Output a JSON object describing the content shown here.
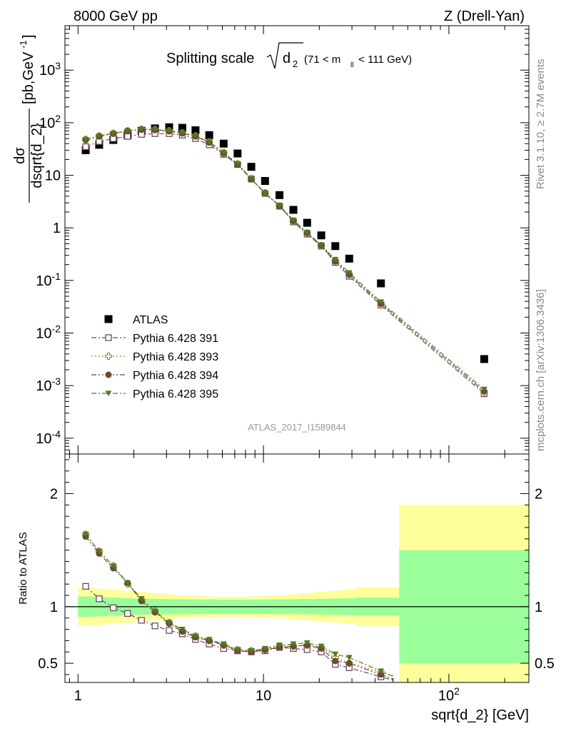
{
  "header": {
    "left": "8000 GeV pp",
    "right": "Z (Drell-Yan)"
  },
  "side": {
    "rivet": "Rivet 3.1.10, ≥ 2.7M events",
    "mcplots": "mcplots.cern.ch [arXiv:1306.3436]"
  },
  "chart_data": [
    {
      "type": "scatter",
      "panel": "main",
      "title_main": "Splitting scale",
      "title_sqrt_base": "d",
      "title_sqrt_sub": "2",
      "title_cut": "(71 < m",
      "title_cut_sub": "ll",
      "title_cut_tail": " < 111 GeV)",
      "ylabel_num": "dσ",
      "ylabel_den": "dsqrt{d_2}",
      "ylabel_unit": "[pb,GeV",
      "ylabel_unit_sup": "-1",
      "ylabel_unit_tail": "]",
      "xscale": "log",
      "yscale": "log",
      "xlim": [
        0.85,
        270
      ],
      "ylim": [
        5e-05,
        7000
      ],
      "yticks": [
        "10^-4",
        "10^-3",
        "10^-2",
        "10^-1",
        "1",
        "10",
        "10^2",
        "10^3"
      ],
      "watermark": "ATLAS_2017_I1589844",
      "legend_position": "lower-left",
      "x": [
        1.1,
        1.3,
        1.55,
        1.85,
        2.2,
        2.6,
        3.1,
        3.65,
        4.3,
        5.1,
        6.1,
        7.25,
        8.6,
        10.2,
        12.2,
        14.5,
        17.2,
        20.5,
        24.4,
        29.0,
        43.0,
        155.0
      ],
      "series": [
        {
          "name": "ATLAS",
          "marker": "filled-square",
          "color": "#000000",
          "values": [
            30,
            38,
            47,
            58,
            70,
            78,
            82,
            80,
            72,
            58,
            40,
            26,
            14.5,
            7.8,
            4.2,
            2.2,
            1.25,
            0.72,
            0.45,
            0.26,
            0.088,
            0.0032
          ]
        },
        {
          "name": "Pythia 6.428 391",
          "marker": "open-square",
          "color": "#6b4a5e",
          "dash": "7,3,2,3",
          "values": [
            35,
            44,
            50,
            55,
            60,
            62,
            62,
            58,
            50,
            38,
            25,
            16,
            8.5,
            4.5,
            2.6,
            1.3,
            0.76,
            0.45,
            0.22,
            0.12,
            0.034,
            0.0007
          ]
        },
        {
          "name": "Pythia 6.428 393",
          "marker": "open-cross",
          "color": "#9a8a3e",
          "dash": "2,3",
          "values": [
            48,
            56,
            63,
            70,
            75,
            74,
            70,
            64,
            56,
            43,
            27,
            16.5,
            8.6,
            4.6,
            2.6,
            1.35,
            0.8,
            0.46,
            0.24,
            0.13,
            0.037,
            0.00075
          ]
        },
        {
          "name": "Pythia 6.428 394",
          "marker": "filled-circle",
          "color": "#6b4a32",
          "dash": "7,3,2,3,2,3",
          "values": [
            47,
            55,
            62,
            70,
            74,
            73,
            69,
            63,
            55,
            42,
            26,
            16,
            8.4,
            4.6,
            2.6,
            1.35,
            0.8,
            0.46,
            0.23,
            0.13,
            0.036,
            0.00078
          ]
        },
        {
          "name": "Pythia 6.428 395",
          "marker": "filled-triangle-down",
          "color": "#4e7a22",
          "dash": "7,3,2,3",
          "values": [
            48,
            56,
            63,
            70,
            75,
            74,
            70,
            65,
            56,
            43,
            27,
            16.5,
            8.6,
            4.6,
            2.65,
            1.4,
            0.82,
            0.47,
            0.25,
            0.14,
            0.039,
            0.00085
          ]
        }
      ]
    },
    {
      "type": "scatter",
      "panel": "ratio",
      "ylabel": "Ratio to ATLAS",
      "xlabel": "sqrt{d_2} [GeV]",
      "xscale": "log",
      "xlim": [
        0.85,
        270
      ],
      "ylim": [
        0.33,
        2.35
      ],
      "yticks": [
        "0.5",
        "1",
        "2"
      ],
      "xticks": [
        "1",
        "10",
        "10^2"
      ],
      "reference_line": 1,
      "band_colors": {
        "inner": "#9afe9a",
        "outer": "#fefe9a"
      },
      "bands": {
        "edges": [
          1.0,
          1.2,
          1.42,
          1.7,
          2.0,
          2.4,
          2.85,
          3.35,
          3.95,
          4.7,
          5.6,
          6.65,
          7.9,
          9.4,
          11.2,
          13.3,
          15.8,
          18.8,
          22.4,
          26.6,
          31.6,
          54,
          270
        ],
        "inner_half": [
          0.09,
          0.085,
          0.08,
          0.075,
          0.072,
          0.07,
          0.068,
          0.066,
          0.065,
          0.064,
          0.063,
          0.063,
          0.063,
          0.064,
          0.065,
          0.066,
          0.068,
          0.07,
          0.072,
          0.075,
          0.08,
          0.5
        ],
        "outer_half": [
          0.17,
          0.16,
          0.15,
          0.14,
          0.13,
          0.12,
          0.11,
          0.1,
          0.095,
          0.09,
          0.088,
          0.088,
          0.09,
          0.095,
          0.1,
          0.11,
          0.12,
          0.13,
          0.14,
          0.15,
          0.17,
          0.9
        ]
      },
      "x": [
        1.1,
        1.3,
        1.55,
        1.85,
        2.2,
        2.6,
        3.1,
        3.65,
        4.3,
        5.1,
        6.1,
        7.25,
        8.6,
        10.2,
        12.2,
        14.5,
        17.2,
        20.5,
        24.4,
        29.0,
        43.0
      ],
      "series": [
        {
          "name": "Pythia 6.428 391",
          "values": [
            1.18,
            1.07,
            0.99,
            0.94,
            0.88,
            0.83,
            0.79,
            0.76,
            0.71,
            0.67,
            0.63,
            0.61,
            0.6,
            0.61,
            0.64,
            0.63,
            0.62,
            0.6,
            0.49,
            0.46,
            0.38
          ]
        },
        {
          "name": "Pythia 6.428 393",
          "values": [
            1.64,
            1.49,
            1.36,
            1.2,
            1.06,
            0.96,
            0.86,
            0.79,
            0.74,
            0.7,
            0.66,
            0.62,
            0.61,
            0.62,
            0.65,
            0.65,
            0.66,
            0.64,
            0.55,
            0.5,
            0.42
          ]
        },
        {
          "name": "Pythia 6.428 394",
          "values": [
            1.62,
            1.47,
            1.34,
            1.21,
            1.05,
            0.95,
            0.85,
            0.78,
            0.73,
            0.7,
            0.66,
            0.61,
            0.6,
            0.62,
            0.64,
            0.65,
            0.66,
            0.63,
            0.52,
            0.5,
            0.4
          ]
        },
        {
          "name": "Pythia 6.428 395",
          "values": [
            1.64,
            1.49,
            1.36,
            1.21,
            1.07,
            0.96,
            0.86,
            0.8,
            0.74,
            0.71,
            0.67,
            0.62,
            0.61,
            0.63,
            0.66,
            0.67,
            0.68,
            0.65,
            0.58,
            0.55,
            0.43
          ]
        }
      ]
    }
  ]
}
